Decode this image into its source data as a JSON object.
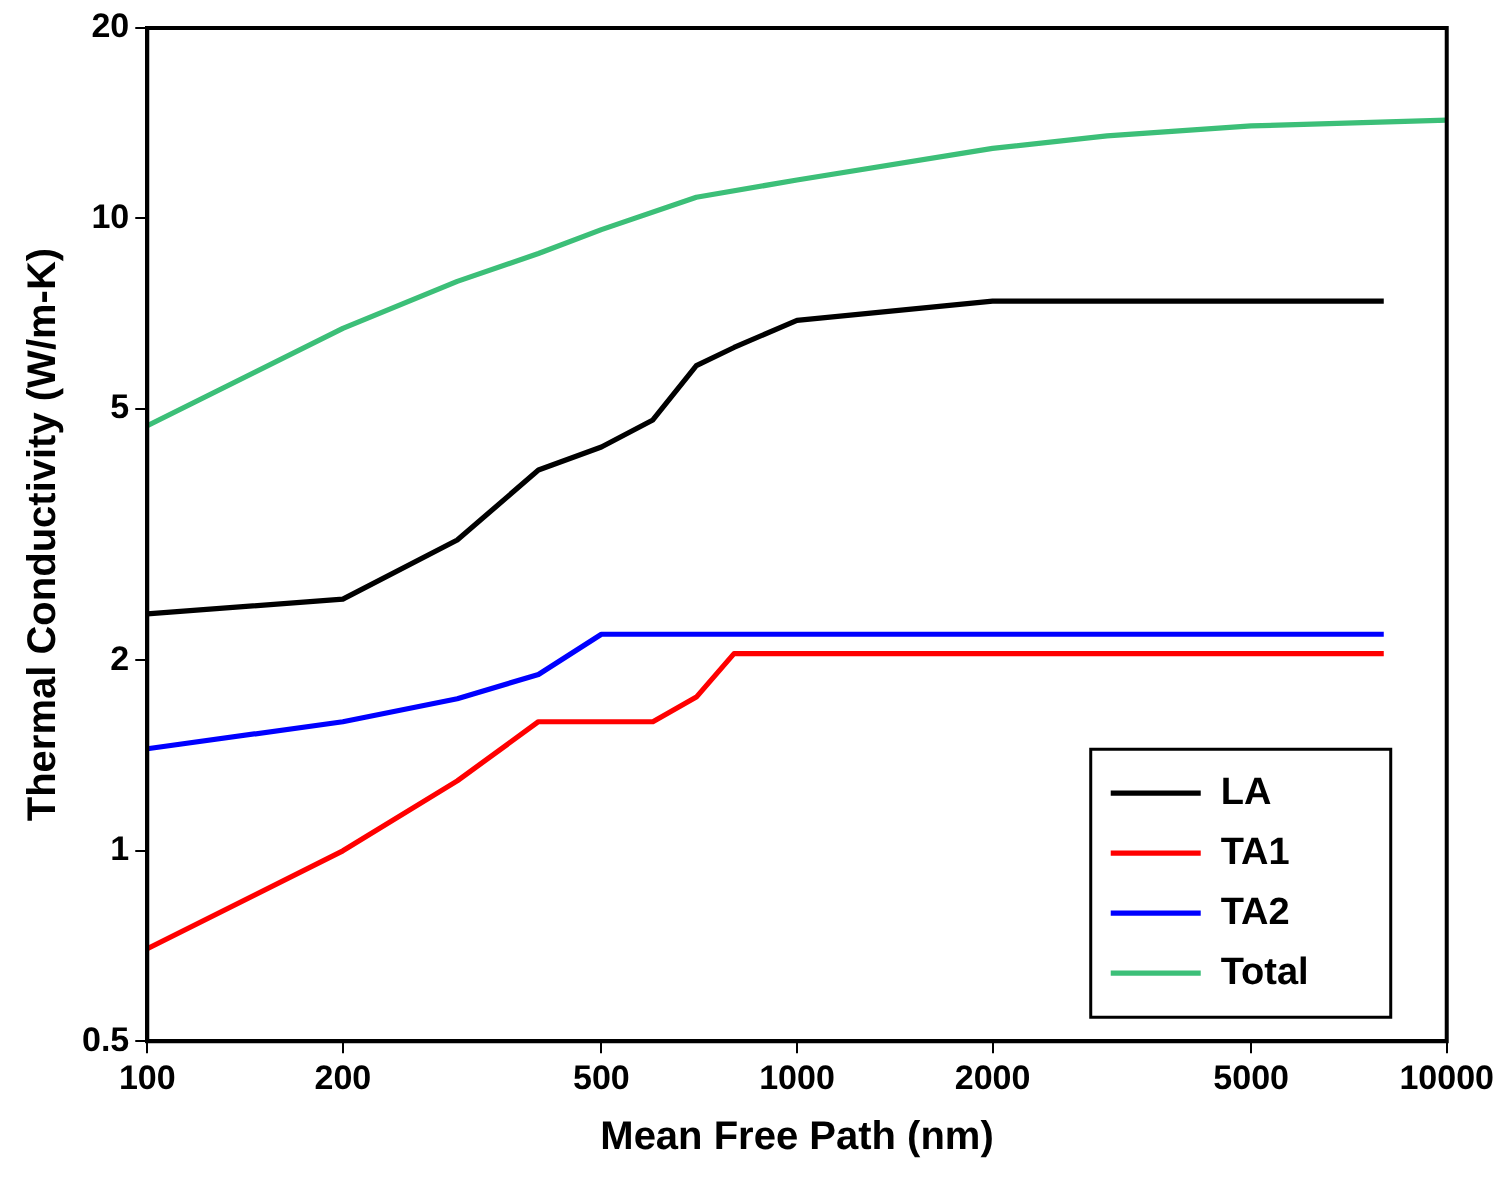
{
  "chart_data": {
    "type": "line",
    "xlabel": "Mean Free Path (nm)",
    "ylabel": "Thermal Conductivity (W/m-K)",
    "log": "xy",
    "xlim": [
      100,
      10000
    ],
    "xticks": [
      100,
      200,
      500,
      1000,
      2000,
      5000,
      10000
    ],
    "ylim": [
      0.5,
      20
    ],
    "yticks": [
      0.5,
      1,
      2,
      5,
      10,
      20
    ],
    "grid": false,
    "legend": "bottom right",
    "marker": "none",
    "line_style": "solid",
    "series": [
      {
        "name": "LA",
        "color": "#000000",
        "x": [
          100,
          200,
          300,
          400,
          500,
          600,
          700,
          800,
          1000,
          2000,
          8000
        ],
        "values": [
          2.37,
          2.5,
          3.1,
          4.0,
          4.35,
          4.8,
          5.85,
          6.25,
          6.9,
          7.4,
          7.4
        ]
      },
      {
        "name": "TA1",
        "color": "#ff0000",
        "x": [
          100,
          200,
          300,
          400,
          500,
          600,
          700,
          800,
          8000
        ],
        "values": [
          0.7,
          1.0,
          1.29,
          1.6,
          1.6,
          1.6,
          1.75,
          2.05,
          2.05
        ]
      },
      {
        "name": "TA2",
        "color": "#0000ff",
        "x": [
          100,
          200,
          300,
          400,
          500,
          8000
        ],
        "values": [
          1.45,
          1.6,
          1.74,
          1.9,
          2.2,
          2.2
        ]
      },
      {
        "name": "Total",
        "color": "#3cbf78",
        "x": [
          100,
          200,
          300,
          400,
          500,
          700,
          1000,
          2000,
          3000,
          5000,
          10000
        ],
        "values": [
          4.7,
          6.7,
          7.95,
          8.8,
          9.6,
          10.8,
          11.5,
          12.9,
          13.5,
          14.0,
          14.3
        ]
      }
    ]
  }
}
